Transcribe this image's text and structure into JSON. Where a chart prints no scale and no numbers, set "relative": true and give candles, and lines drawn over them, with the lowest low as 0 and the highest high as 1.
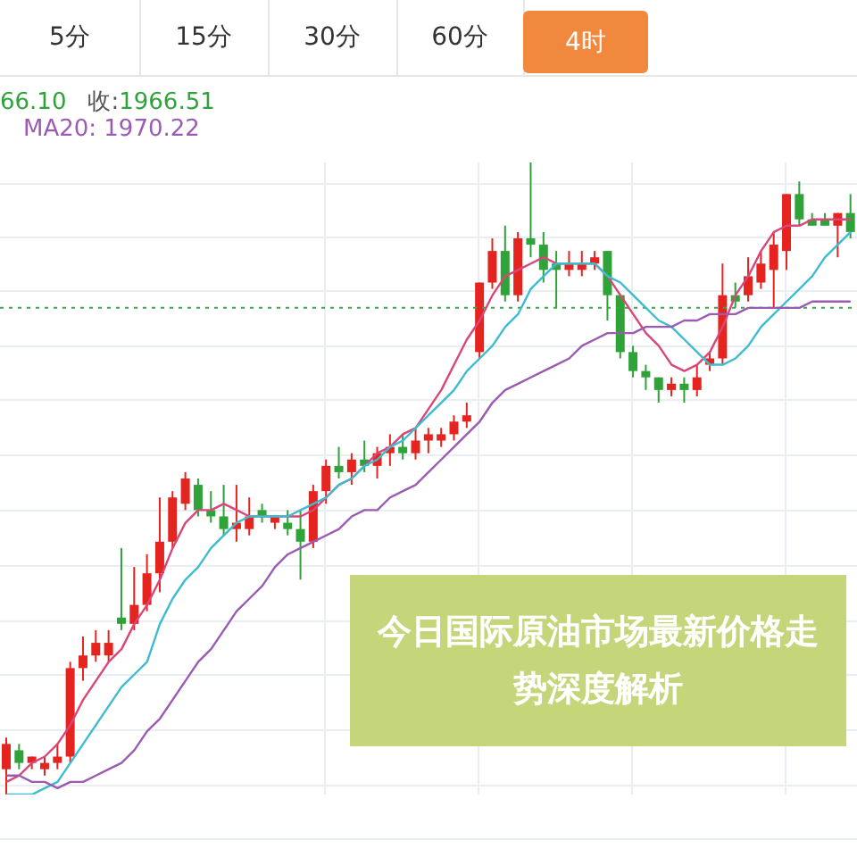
{
  "chart_data": {
    "type": "candlestick",
    "title": "今日国际原油市场最新价格走势深度解析",
    "relative": true,
    "tick_labels": false,
    "grid": true,
    "marker": "none",
    "categories": [
      null,
      null,
      null,
      null,
      null,
      null,
      null,
      null,
      null,
      null,
      null,
      null,
      null,
      null,
      null,
      null,
      null,
      null,
      null,
      null,
      null,
      null,
      null,
      null,
      null,
      null,
      null,
      null,
      null,
      null,
      null,
      null,
      null,
      null,
      null,
      null,
      null,
      null,
      null,
      null,
      null,
      null,
      null,
      null,
      null,
      null,
      null,
      null,
      null,
      null,
      null,
      null,
      null,
      null,
      null,
      null,
      null,
      null,
      null,
      null,
      null,
      null,
      null,
      null,
      null,
      null,
      null
    ],
    "ohlc": [
      [
        0.04,
        0.09,
        0,
        0.08
      ],
      [
        0.07,
        0.08,
        0.04,
        0.05
      ],
      [
        0.05,
        0.06,
        0.04,
        0.06
      ],
      [
        0.04,
        0.06,
        0.03,
        0.05
      ],
      [
        0.05,
        0.08,
        0.04,
        0.06
      ],
      [
        0.06,
        0.21,
        0.05,
        0.2
      ],
      [
        0.2,
        0.25,
        0.18,
        0.22
      ],
      [
        0.22,
        0.26,
        0.21,
        0.24
      ],
      [
        0.22,
        0.26,
        0.21,
        0.24
      ],
      [
        0.28,
        0.39,
        0.26,
        0.27
      ],
      [
        0.27,
        0.36,
        0.26,
        0.3
      ],
      [
        0.3,
        0.38,
        0.29,
        0.35
      ],
      [
        0.35,
        0.47,
        0.32,
        0.4
      ],
      [
        0.4,
        0.48,
        0.39,
        0.47
      ],
      [
        0.46,
        0.51,
        0.45,
        0.5
      ],
      [
        0.49,
        0.5,
        0.44,
        0.45
      ],
      [
        0.45,
        0.48,
        0.43,
        0.44
      ],
      [
        0.44,
        0.49,
        0.41,
        0.42
      ],
      [
        0.42,
        0.49,
        0.4,
        0.43
      ],
      [
        0.42,
        0.47,
        0.41,
        0.44
      ],
      [
        0.45,
        0.46,
        0.43,
        0.44
      ],
      [
        0.43,
        0.44,
        0.42,
        0.44
      ],
      [
        0.43,
        0.45,
        0.41,
        0.42
      ],
      [
        0.42,
        0.45,
        0.34,
        0.4
      ],
      [
        0.4,
        0.49,
        0.39,
        0.48
      ],
      [
        0.48,
        0.53,
        0.46,
        0.52
      ],
      [
        0.52,
        0.55,
        0.5,
        0.51
      ],
      [
        0.51,
        0.54,
        0.49,
        0.53
      ],
      [
        0.53,
        0.56,
        0.51,
        0.52
      ],
      [
        0.52,
        0.55,
        0.5,
        0.54
      ],
      [
        0.54,
        0.57,
        0.52,
        0.55
      ],
      [
        0.55,
        0.57,
        0.53,
        0.54
      ],
      [
        0.54,
        0.58,
        0.53,
        0.56
      ],
      [
        0.56,
        0.58,
        0.54,
        0.57
      ],
      [
        0.56,
        0.58,
        0.55,
        0.57
      ],
      [
        0.57,
        0.6,
        0.56,
        0.59
      ],
      [
        0.59,
        0.62,
        0.58,
        0.6
      ],
      [
        0.7,
        0.81,
        0.69,
        0.81
      ],
      [
        0.81,
        0.88,
        0.8,
        0.86
      ],
      [
        0.86,
        0.9,
        0.78,
        0.79
      ],
      [
        0.79,
        0.89,
        0.78,
        0.88
      ],
      [
        0.88,
        1,
        0.85,
        0.87
      ],
      [
        0.87,
        0.89,
        0.81,
        0.83
      ],
      [
        0.84,
        0.86,
        0.77,
        0.83
      ],
      [
        0.83,
        0.86,
        0.82,
        0.84
      ],
      [
        0.83,
        0.86,
        0.82,
        0.84
      ],
      [
        0.84,
        0.86,
        0.83,
        0.85
      ],
      [
        0.86,
        0.86,
        0.75,
        0.79
      ],
      [
        0.79,
        0.79,
        0.69,
        0.7
      ],
      [
        0.7,
        0.71,
        0.66,
        0.67
      ],
      [
        0.67,
        0.68,
        0.64,
        0.66
      ],
      [
        0.66,
        0.66,
        0.62,
        0.64
      ],
      [
        0.64,
        0.66,
        0.63,
        0.65
      ],
      [
        0.65,
        0.66,
        0.62,
        0.64
      ],
      [
        0.64,
        0.68,
        0.63,
        0.66
      ],
      [
        0.68,
        0.7,
        0.67,
        0.69
      ],
      [
        0.69,
        0.84,
        0.68,
        0.79
      ],
      [
        0.79,
        0.81,
        0.77,
        0.78
      ],
      [
        0.79,
        0.85,
        0.78,
        0.82
      ],
      [
        0.81,
        0.86,
        0.8,
        0.84
      ],
      [
        0.83,
        0.89,
        0.77,
        0.87
      ],
      [
        0.86,
        0.95,
        0.83,
        0.95
      ],
      [
        0.95,
        0.97,
        0.9,
        0.91
      ],
      [
        0.91,
        0.92,
        0.9,
        0.9
      ],
      [
        0.91,
        0.92,
        0.9,
        0.9
      ],
      [
        0.9,
        0.92,
        0.85,
        0.92
      ],
      [
        0.92,
        0.95,
        0.88,
        0.89
      ]
    ],
    "colors": [
      "#e5231f",
      "#2fa33a",
      "#e5231f",
      "#e5231f",
      "#e5231f",
      "#e5231f",
      "#e5231f",
      "#e5231f",
      "#e5231f",
      "#2fa33a",
      "#e5231f",
      "#e5231f",
      "#e5231f",
      "#e5231f",
      "#e5231f",
      "#2fa33a",
      "#2fa33a",
      "#2fa33a",
      "#e5231f",
      "#e5231f",
      "#2fa33a",
      "#e5231f",
      "#2fa33a",
      "#2fa33a",
      "#e5231f",
      "#e5231f",
      "#2fa33a",
      "#e5231f",
      "#2fa33a",
      "#e5231f",
      "#e5231f",
      "#2fa33a",
      "#e5231f",
      "#e5231f",
      "#e5231f",
      "#e5231f",
      "#e5231f",
      "#e5231f",
      "#e5231f",
      "#2fa33a",
      "#e5231f",
      "#2fa33a",
      "#2fa33a",
      "#2fa33a",
      "#e5231f",
      "#e5231f",
      "#e5231f",
      "#2fa33a",
      "#2fa33a",
      "#2fa33a",
      "#2fa33a",
      "#2fa33a",
      "#e5231f",
      "#2fa33a",
      "#e5231f",
      "#e5231f",
      "#e5231f",
      "#2fa33a",
      "#e5231f",
      "#e5231f",
      "#e5231f",
      "#e5231f",
      "#2fa33a",
      "#2fa33a",
      "#2fa33a",
      "#e5231f",
      "#2fa33a"
    ],
    "series": [
      {
        "type": "line",
        "color": "#d9467a",
        "values": [
          0.02,
          0.03,
          0.05,
          0.06,
          0.08,
          0.11,
          0.15,
          0.18,
          0.21,
          0.23,
          0.27,
          0.3,
          0.34,
          0.39,
          0.43,
          0.45,
          0.45,
          0.46,
          0.45,
          0.44,
          0.44,
          0.44,
          0.44,
          0.44,
          0.45,
          0.47,
          0.49,
          0.5,
          0.52,
          0.54,
          0.55,
          0.57,
          0.58,
          0.61,
          0.64,
          0.68,
          0.72,
          0.75,
          0.79,
          0.82,
          0.83,
          0.84,
          0.85,
          0.84,
          0.84,
          0.84,
          0.84,
          0.82,
          0.79,
          0.76,
          0.73,
          0.71,
          0.68,
          0.67,
          0.68,
          0.7,
          0.74,
          0.79,
          0.82,
          0.86,
          0.89,
          0.9,
          0.9,
          0.91,
          0.91,
          0.91,
          0.91
        ]
      },
      {
        "type": "line",
        "color": "#3dbcd0",
        "values": [
          0,
          0,
          0,
          0.01,
          0.02,
          0.05,
          0.08,
          0.11,
          0.14,
          0.17,
          0.19,
          0.21,
          0.27,
          0.31,
          0.34,
          0.36,
          0.39,
          0.41,
          0.43,
          0.44,
          0.44,
          0.44,
          0.44,
          0.45,
          0.46,
          0.47,
          0.49,
          0.5,
          0.52,
          0.53,
          0.55,
          0.56,
          0.58,
          0.6,
          0.62,
          0.64,
          0.67,
          0.69,
          0.71,
          0.74,
          0.76,
          0.8,
          0.82,
          0.84,
          0.84,
          0.84,
          0.84,
          0.82,
          0.81,
          0.79,
          0.77,
          0.75,
          0.74,
          0.72,
          0.7,
          0.68,
          0.68,
          0.69,
          0.71,
          0.74,
          0.76,
          0.78,
          0.8,
          0.82,
          0.85,
          0.87,
          0.89
        ]
      },
      {
        "type": "line",
        "color": "#9b5bb2",
        "values": [
          0.03,
          0.03,
          0.02,
          0.02,
          0.01,
          0.02,
          0.02,
          0.03,
          0.04,
          0.05,
          0.07,
          0.1,
          0.12,
          0.15,
          0.18,
          0.21,
          0.23,
          0.26,
          0.29,
          0.31,
          0.33,
          0.36,
          0.38,
          0.39,
          0.4,
          0.41,
          0.42,
          0.44,
          0.45,
          0.45,
          0.47,
          0.48,
          0.49,
          0.51,
          0.53,
          0.55,
          0.57,
          0.59,
          0.62,
          0.64,
          0.65,
          0.66,
          0.67,
          0.68,
          0.69,
          0.71,
          0.72,
          0.73,
          0.73,
          0.73,
          0.74,
          0.74,
          0.74,
          0.75,
          0.75,
          0.76,
          0.76,
          0.76,
          0.77,
          0.77,
          0.77,
          0.77,
          0.77,
          0.78,
          0.78,
          0.78,
          0.78
        ]
      }
    ],
    "ref_lines": [
      {
        "axis": "y",
        "value": 0.77,
        "color": "#3aa648",
        "line_style": "dotted"
      }
    ],
    "annotations": [
      "5分",
      "15分",
      "30分",
      "60分",
      "4时",
      "66.10",
      "收:",
      "1966.51",
      "MA20: 1970.22"
    ]
  }
}
